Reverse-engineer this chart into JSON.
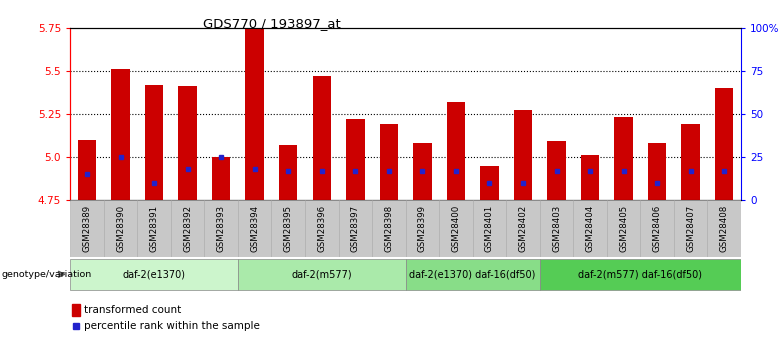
{
  "title": "GDS770 / 193897_at",
  "samples": [
    "GSM28389",
    "GSM28390",
    "GSM28391",
    "GSM28392",
    "GSM28393",
    "GSM28394",
    "GSM28395",
    "GSM28396",
    "GSM28397",
    "GSM28398",
    "GSM28399",
    "GSM28400",
    "GSM28401",
    "GSM28402",
    "GSM28403",
    "GSM28404",
    "GSM28405",
    "GSM28406",
    "GSM28407",
    "GSM28408"
  ],
  "transformed_count": [
    5.1,
    5.51,
    5.42,
    5.41,
    5.0,
    5.75,
    5.07,
    5.47,
    5.22,
    5.19,
    5.08,
    5.32,
    4.95,
    5.27,
    5.09,
    5.01,
    5.23,
    5.08,
    5.19,
    5.4
  ],
  "percentile_rank": [
    15,
    25,
    10,
    18,
    25,
    18,
    17,
    17,
    17,
    17,
    17,
    17,
    10,
    10,
    17,
    17,
    17,
    10,
    17,
    17
  ],
  "ymin": 4.75,
  "ymax": 5.75,
  "y_ticks": [
    4.75,
    5.0,
    5.25,
    5.5,
    5.75
  ],
  "right_y_ticks": [
    0,
    25,
    50,
    75,
    100
  ],
  "right_y_labels": [
    "0",
    "25",
    "50",
    "75",
    "100%"
  ],
  "bar_color": "#cc0000",
  "percentile_color": "#2222cc",
  "group_labels": [
    "daf-2(e1370)",
    "daf-2(m577)",
    "daf-2(e1370) daf-16(df50)",
    "daf-2(m577) daf-16(df50)"
  ],
  "group_ranges": [
    [
      0,
      4
    ],
    [
      5,
      9
    ],
    [
      10,
      13
    ],
    [
      14,
      19
    ]
  ],
  "group_colors": [
    "#d4f7d4",
    "#b2f0b2",
    "#90e890",
    "#60d860"
  ],
  "label_text": "genotype/variation",
  "legend_bar_label": "transformed count",
  "legend_pct_label": "percentile rank within the sample",
  "bar_width": 0.55
}
